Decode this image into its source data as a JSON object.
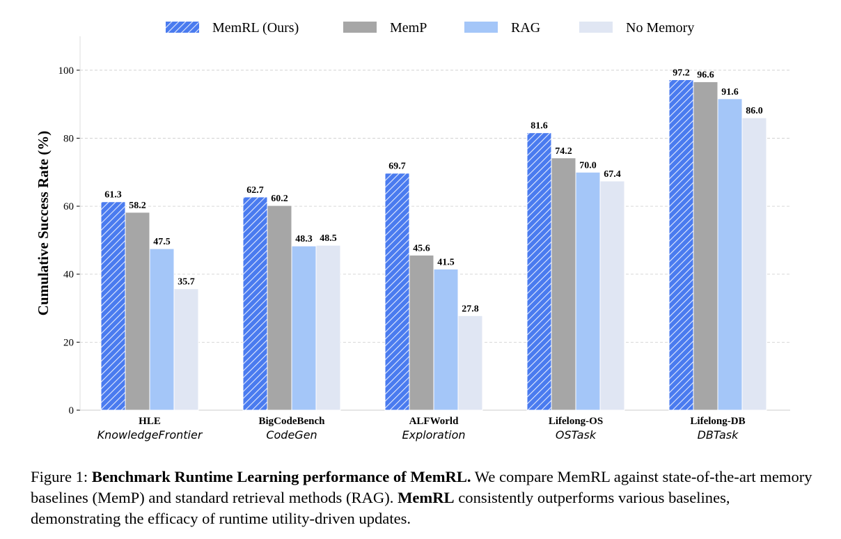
{
  "chart_data": {
    "type": "bar",
    "categories": [
      "HLE",
      "BigCodeBench",
      "ALFWorld",
      "Lifelong-OS",
      "Lifelong-DB"
    ],
    "subcategories": [
      "KnowledgeFrontier",
      "CodeGen",
      "Exploration",
      "OSTask",
      "DBTask"
    ],
    "series": [
      {
        "name": "MemRL (Ours)",
        "values": [
          61.3,
          62.7,
          69.7,
          81.6,
          97.2
        ],
        "color": "#4a7bef",
        "hatch": true
      },
      {
        "name": "MemP",
        "values": [
          58.2,
          60.2,
          45.6,
          74.2,
          96.6
        ],
        "color": "#a6a6a6",
        "hatch": false
      },
      {
        "name": "RAG",
        "values": [
          47.5,
          48.3,
          41.5,
          70.0,
          91.6
        ],
        "color": "#a4c6f8",
        "hatch": false
      },
      {
        "name": "No Memory",
        "values": [
          35.7,
          48.5,
          27.8,
          67.4,
          86.0
        ],
        "color": "#e0e6f3",
        "hatch": false
      }
    ],
    "value_labels": [
      [
        "61.3",
        "62.7",
        "69.7",
        "81.6",
        "97.2"
      ],
      [
        "58.2",
        "60.2",
        "45.6",
        "74.2",
        "96.6"
      ],
      [
        "47.5",
        "48.3",
        "41.5",
        "70.0",
        "91.6"
      ],
      [
        "35.7",
        "48.5",
        "27.8",
        "67.4",
        "86.0"
      ]
    ],
    "ylabel": "Cumulative Success Rate (%)",
    "xlabel": "",
    "ylim": [
      0,
      110
    ],
    "yticks": [
      0,
      20,
      40,
      60,
      80,
      100
    ],
    "grid": true,
    "legend_position": "top-center"
  },
  "caption": {
    "prefix": "Figure 1: ",
    "bold_title": "Benchmark Runtime Learning performance of MemRL.",
    "text1": " We compare MemRL against state-of-the-art memory baselines (MemP) and standard retrieval methods (RAG). ",
    "bold_name": "MemRL",
    "text2": " consistently outperforms various baselines, demonstrating the efficacy of runtime utility-driven updates."
  }
}
